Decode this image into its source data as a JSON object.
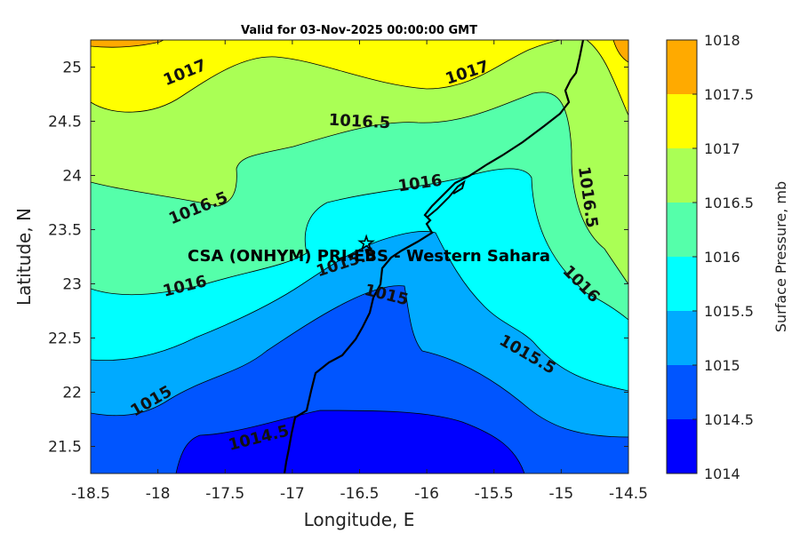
{
  "title": "Valid for 03-Nov-2025 00:00:00 GMT",
  "x_axis": {
    "label": "Longitude, E",
    "ticks": [
      "-18.5",
      "-18",
      "-17.5",
      "-17",
      "-16.5",
      "-16",
      "-15.5",
      "-15",
      "-14.5"
    ]
  },
  "y_axis": {
    "label": "Latitude, N",
    "ticks": [
      "21.5",
      "22",
      "22.5",
      "23",
      "23.5",
      "24",
      "24.5",
      "25"
    ]
  },
  "colorbar": {
    "label": "Surface Pressure, mb",
    "ticks": [
      "1014",
      "1014.5",
      "1015",
      "1015.5",
      "1016",
      "1016.5",
      "1017",
      "1017.5",
      "1018"
    ],
    "colors": [
      "#0000ff",
      "#0055ff",
      "#00aaff",
      "#00ffff",
      "#55ffaa",
      "#aaff55",
      "#ffff00",
      "#ffaa00",
      "#ff5500"
    ]
  },
  "station": {
    "label": "CSA (ONHYM) PRI-EBS  - Western Sahara",
    "marker": "star-icon"
  },
  "contour_labels": [
    {
      "text": "1017",
      "x": -17.8,
      "y": 24.95
    },
    {
      "text": "1017",
      "x": -15.7,
      "y": 24.95
    },
    {
      "text": "1016.5",
      "x": -16.5,
      "y": 24.5
    },
    {
      "text": "1016.5",
      "x": -17.7,
      "y": 23.7
    },
    {
      "text": "1016",
      "x": -16.05,
      "y": 23.93
    },
    {
      "text": "1016.5",
      "x": -14.8,
      "y": 23.8
    },
    {
      "text": "1016",
      "x": -17.8,
      "y": 22.98
    },
    {
      "text": "1016",
      "x": -14.85,
      "y": 23.0
    },
    {
      "text": "1015.5",
      "x": -16.6,
      "y": 23.2
    },
    {
      "text": "1015",
      "x": -16.3,
      "y": 22.9
    },
    {
      "text": "1015.5",
      "x": -15.25,
      "y": 22.35
    },
    {
      "text": "1015",
      "x": -18.05,
      "y": 21.92
    },
    {
      "text": "1014.5",
      "x": -17.25,
      "y": 21.58
    }
  ],
  "chart_data": {
    "type": "heatmap",
    "variable": "Surface Pressure, mb",
    "x_range": [
      -18.5,
      -14.5
    ],
    "y_range": [
      21.25,
      25.25
    ],
    "levels": [
      1014,
      1014.5,
      1015,
      1015.5,
      1016,
      1016.5,
      1017,
      1017.5,
      1018
    ],
    "contour_labels": [
      "1017",
      "1017",
      "1016.5",
      "1016.5",
      "1016",
      "1016.5",
      "1016",
      "1016",
      "1015.5",
      "1015",
      "1015.5",
      "1015",
      "1014.5"
    ],
    "station": {
      "name": "CSA (ONHYM) PRI-EBS  - Western Sahara",
      "lon": -16.45,
      "lat": 23.3
    }
  }
}
